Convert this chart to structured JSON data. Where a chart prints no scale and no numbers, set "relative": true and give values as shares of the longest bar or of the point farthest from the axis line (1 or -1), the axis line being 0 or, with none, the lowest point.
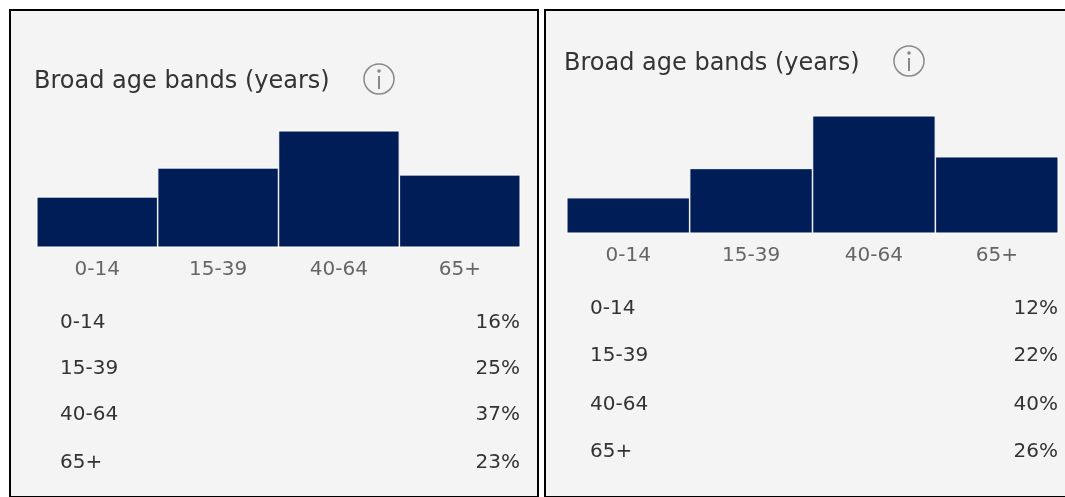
{
  "chart_data": [
    {
      "type": "bar",
      "title": "Broad age bands (years)",
      "categories": [
        "0-14",
        "15-39",
        "40-64",
        "65+"
      ],
      "values": [
        0.43,
        0.68,
        1,
        0.62
      ],
      "relative": true,
      "color": "#001d57"
    },
    {
      "type": "other",
      "categories": [
        "0-14",
        "15-39",
        "40-64",
        "65+"
      ],
      "values": [
        16,
        25,
        37,
        23
      ],
      "value_labels": [
        "16%",
        "25%",
        "37%",
        "23%"
      ]
    },
    {
      "type": "bar",
      "title": "Broad age bands (years)",
      "categories": [
        "0-14",
        "15-39",
        "40-64",
        "65+"
      ],
      "values": [
        0.3,
        0.55,
        1,
        0.65
      ],
      "relative": true,
      "color": "#001d57"
    },
    {
      "type": "other",
      "categories": [
        "0-14",
        "15-39",
        "40-64",
        "65+"
      ],
      "values": [
        12,
        22,
        40,
        26
      ],
      "value_labels": [
        "12%",
        "22%",
        "40%",
        "26%"
      ]
    }
  ]
}
